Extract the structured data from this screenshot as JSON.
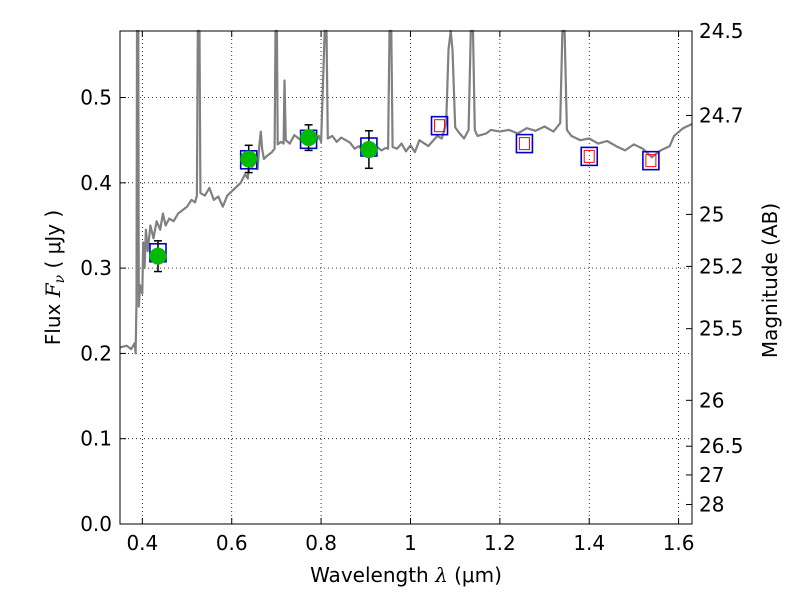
{
  "chart_data": {
    "type": "scatter",
    "xlabel": {
      "prefix": "Wavelength  ",
      "math": "λ",
      "suffix": " (μm)"
    },
    "ylabel": {
      "prefix": "Flux  ",
      "math": "F",
      "sub": "ν",
      "suffix": "  ( μJy )"
    },
    "y2label": "Magnitude (AB)",
    "xlim": [
      0.35,
      1.63
    ],
    "ylim": [
      0.0,
      0.578
    ],
    "xticks": [
      0.4,
      0.6,
      0.8,
      1.0,
      1.2,
      1.4,
      1.6
    ],
    "xtick_labels": [
      "0.4",
      "0.6",
      "0.8",
      "1",
      "1.2",
      "1.4",
      "1.6"
    ],
    "yticks": [
      0.0,
      0.1,
      0.2,
      0.3,
      0.4,
      0.5
    ],
    "ytick_labels": [
      "0.0",
      "0.1",
      "0.2",
      "0.3",
      "0.4",
      "0.5"
    ],
    "y2ticks": [
      {
        "label": "24.5",
        "flux": 0.578
      },
      {
        "label": "24.7",
        "flux": 0.479
      },
      {
        "label": "25",
        "flux": 0.363
      },
      {
        "label": "25.2",
        "flux": 0.302
      },
      {
        "label": "25.5",
        "flux": 0.229
      },
      {
        "label": "26",
        "flux": 0.145
      },
      {
        "label": "26.5",
        "flux": 0.0912
      },
      {
        "label": "27",
        "flux": 0.0575
      },
      {
        "label": "28",
        "flux": 0.0229
      }
    ],
    "grid": true,
    "colors": {
      "template": "#808080",
      "observed": "#00bb00",
      "model_box": "#0000cc",
      "inner_box": "#ff0000",
      "errorbar": "#000000"
    },
    "series": [
      {
        "kind": "line",
        "points": [
          [
            0.35,
            0.207
          ],
          [
            0.365,
            0.209
          ],
          [
            0.375,
            0.205
          ],
          [
            0.383,
            0.212
          ],
          [
            0.385,
            0.2
          ],
          [
            0.387,
            0.26
          ],
          [
            0.388,
            0.578
          ],
          [
            0.391,
            0.578
          ],
          [
            0.392,
            0.255
          ],
          [
            0.395,
            0.28
          ],
          [
            0.4,
            0.27
          ],
          [
            0.402,
            0.33
          ],
          [
            0.405,
            0.3
          ],
          [
            0.408,
            0.345
          ],
          [
            0.412,
            0.32
          ],
          [
            0.418,
            0.35
          ],
          [
            0.425,
            0.335
          ],
          [
            0.432,
            0.355
          ],
          [
            0.44,
            0.345
          ],
          [
            0.446,
            0.364
          ],
          [
            0.452,
            0.35
          ],
          [
            0.46,
            0.358
          ],
          [
            0.47,
            0.355
          ],
          [
            0.48,
            0.364
          ],
          [
            0.49,
            0.368
          ],
          [
            0.5,
            0.372
          ],
          [
            0.51,
            0.38
          ],
          [
            0.518,
            0.377
          ],
          [
            0.522,
            0.385
          ],
          [
            0.524,
            0.578
          ],
          [
            0.528,
            0.578
          ],
          [
            0.53,
            0.388
          ],
          [
            0.54,
            0.385
          ],
          [
            0.55,
            0.394
          ],
          [
            0.56,
            0.38
          ],
          [
            0.57,
            0.384
          ],
          [
            0.58,
            0.372
          ],
          [
            0.59,
            0.385
          ],
          [
            0.6,
            0.39
          ],
          [
            0.61,
            0.395
          ],
          [
            0.62,
            0.4
          ],
          [
            0.63,
            0.41
          ],
          [
            0.636,
            0.405
          ],
          [
            0.64,
            0.43
          ],
          [
            0.645,
            0.418
          ],
          [
            0.65,
            0.422
          ],
          [
            0.655,
            0.428
          ],
          [
            0.658,
            0.416
          ],
          [
            0.662,
            0.445
          ],
          [
            0.665,
            0.46
          ],
          [
            0.668,
            0.44
          ],
          [
            0.672,
            0.428
          ],
          [
            0.68,
            0.432
          ],
          [
            0.69,
            0.436
          ],
          [
            0.696,
            0.44
          ],
          [
            0.698,
            0.578
          ],
          [
            0.701,
            0.578
          ],
          [
            0.703,
            0.445
          ],
          [
            0.71,
            0.448
          ],
          [
            0.716,
            0.446
          ],
          [
            0.718,
            0.52
          ],
          [
            0.721,
            0.45
          ],
          [
            0.73,
            0.446
          ],
          [
            0.74,
            0.456
          ],
          [
            0.75,
            0.452
          ],
          [
            0.76,
            0.448
          ],
          [
            0.768,
            0.456
          ],
          [
            0.776,
            0.446
          ],
          [
            0.785,
            0.455
          ],
          [
            0.79,
            0.45
          ],
          [
            0.795,
            0.455
          ],
          [
            0.8,
            0.448
          ],
          [
            0.808,
            0.578
          ],
          [
            0.812,
            0.578
          ],
          [
            0.815,
            0.452
          ],
          [
            0.825,
            0.455
          ],
          [
            0.835,
            0.448
          ],
          [
            0.845,
            0.453
          ],
          [
            0.855,
            0.45
          ],
          [
            0.865,
            0.447
          ],
          [
            0.875,
            0.44
          ],
          [
            0.885,
            0.443
          ],
          [
            0.895,
            0.435
          ],
          [
            0.905,
            0.441
          ],
          [
            0.915,
            0.436
          ],
          [
            0.925,
            0.442
          ],
          [
            0.935,
            0.438
          ],
          [
            0.945,
            0.441
          ],
          [
            0.95,
            0.44
          ],
          [
            0.953,
            0.578
          ],
          [
            0.957,
            0.578
          ],
          [
            0.96,
            0.442
          ],
          [
            0.97,
            0.44
          ],
          [
            0.98,
            0.446
          ],
          [
            0.99,
            0.437
          ],
          [
            1.0,
            0.444
          ],
          [
            1.01,
            0.436
          ],
          [
            1.02,
            0.45
          ],
          [
            1.04,
            0.443
          ],
          [
            1.06,
            0.455
          ],
          [
            1.07,
            0.452
          ],
          [
            1.08,
            0.47
          ],
          [
            1.085,
            0.556
          ],
          [
            1.09,
            0.578
          ],
          [
            1.094,
            0.556
          ],
          [
            1.1,
            0.465
          ],
          [
            1.11,
            0.458
          ],
          [
            1.12,
            0.452
          ],
          [
            1.13,
            0.462
          ],
          [
            1.135,
            0.578
          ],
          [
            1.14,
            0.578
          ],
          [
            1.144,
            0.462
          ],
          [
            1.15,
            0.455
          ],
          [
            1.17,
            0.458
          ],
          [
            1.18,
            0.462
          ],
          [
            1.2,
            0.46
          ],
          [
            1.22,
            0.462
          ],
          [
            1.24,
            0.458
          ],
          [
            1.26,
            0.464
          ],
          [
            1.28,
            0.461
          ],
          [
            1.3,
            0.466
          ],
          [
            1.32,
            0.46
          ],
          [
            1.335,
            0.47
          ],
          [
            1.34,
            0.578
          ],
          [
            1.345,
            0.578
          ],
          [
            1.35,
            0.462
          ],
          [
            1.36,
            0.455
          ],
          [
            1.38,
            0.45
          ],
          [
            1.4,
            0.452
          ],
          [
            1.42,
            0.446
          ],
          [
            1.44,
            0.449
          ],
          [
            1.46,
            0.443
          ],
          [
            1.48,
            0.438
          ],
          [
            1.5,
            0.445
          ],
          [
            1.52,
            0.44
          ],
          [
            1.54,
            0.43
          ],
          [
            1.56,
            0.438
          ],
          [
            1.58,
            0.443
          ],
          [
            1.59,
            0.455
          ],
          [
            1.61,
            0.464
          ],
          [
            1.63,
            0.469
          ]
        ]
      },
      {
        "kind": "model_boxes",
        "points": [
          [
            0.435,
            0.318
          ],
          [
            0.638,
            0.427
          ],
          [
            0.772,
            0.451
          ],
          [
            0.907,
            0.442
          ],
          [
            1.065,
            0.467
          ],
          [
            1.255,
            0.446
          ],
          [
            1.4,
            0.431
          ],
          [
            1.538,
            0.426
          ]
        ],
        "inner": [
          false,
          false,
          false,
          false,
          true,
          true,
          true,
          true
        ]
      },
      {
        "kind": "observed",
        "points": [
          {
            "x": 0.435,
            "y": 0.314,
            "err": 0.018
          },
          {
            "x": 0.638,
            "y": 0.428,
            "err": 0.016
          },
          {
            "x": 0.772,
            "y": 0.453,
            "err": 0.015
          },
          {
            "x": 0.907,
            "y": 0.439,
            "err": 0.022
          }
        ]
      }
    ]
  }
}
